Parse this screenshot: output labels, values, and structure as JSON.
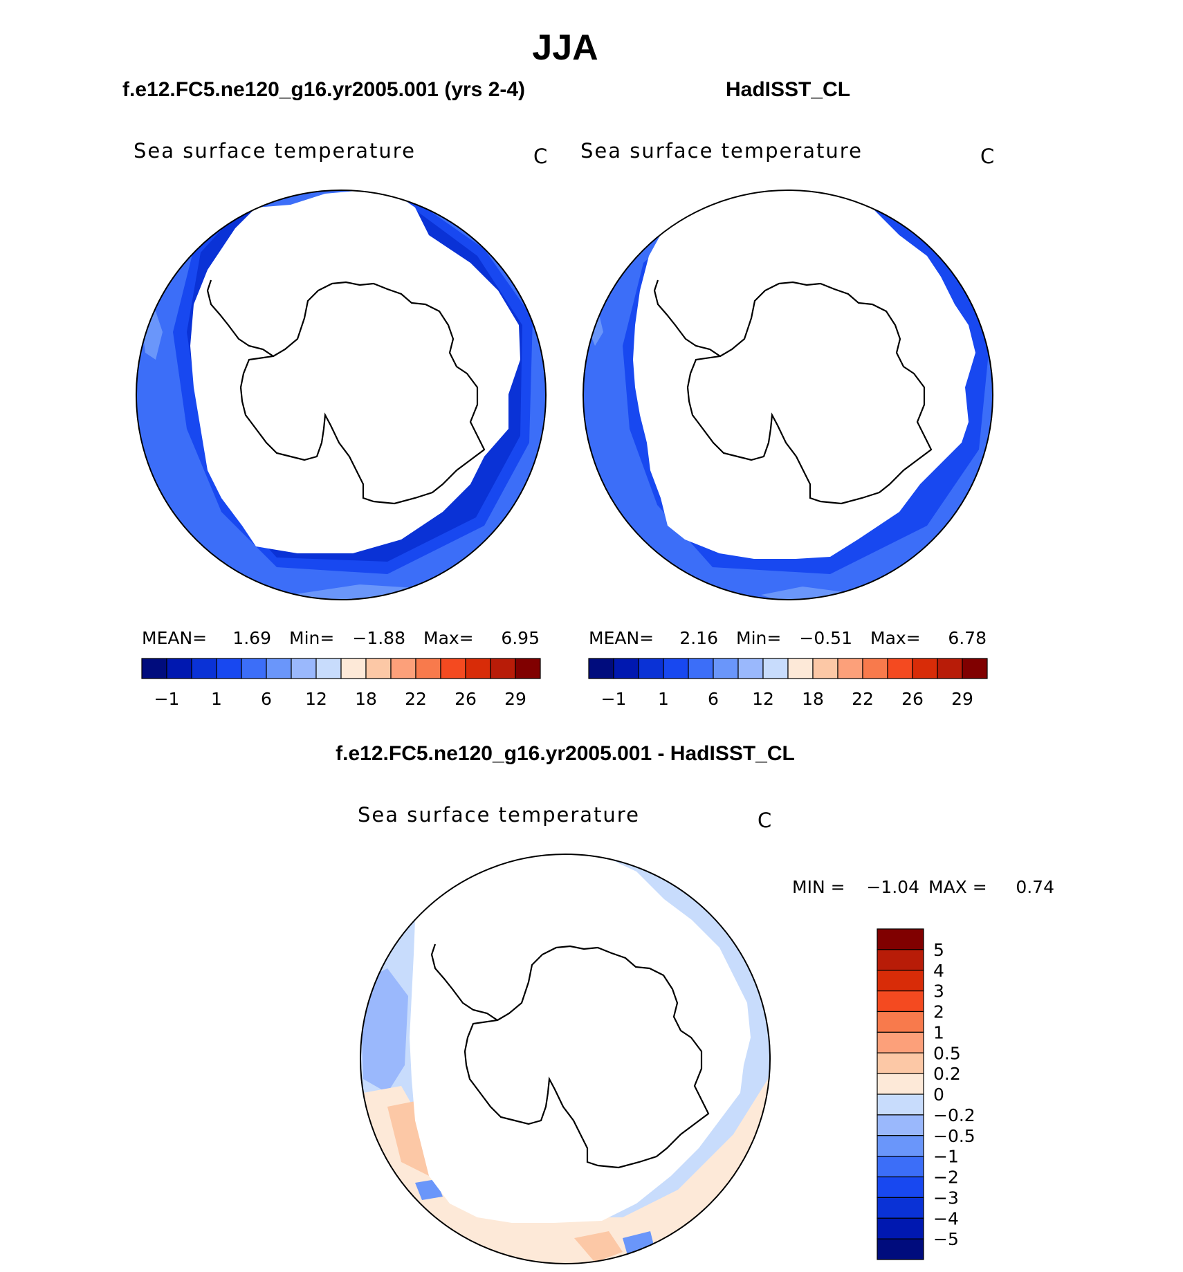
{
  "page_title": "JJA",
  "chart_data": [
    {
      "type": "heatmap",
      "projection": "south-polar-stereographic",
      "case_title": "f.e12.FC5.ne120_g16.yr2005.001 (yrs 2-4)",
      "variable": "Sea surface temperature",
      "units": "C",
      "stats": {
        "mean_label": "MEAN=",
        "mean": "1.69",
        "min_label": "Min=",
        "min": "−1.88",
        "max_label": "Max=",
        "max": "6.95"
      },
      "colorbar": {
        "orientation": "horizontal",
        "tick_labels": [
          "−1",
          "1",
          "6",
          "12",
          "18",
          "22",
          "26",
          "29"
        ],
        "colors": [
          "#000c7d",
          "#0018b0",
          "#0a32d6",
          "#1848f0",
          "#3c6ef8",
          "#6a96fa",
          "#9ab8fc",
          "#c8dcfc",
          "#fde9d8",
          "#fcc8a6",
          "#fca07a",
          "#f87a4c",
          "#f44a20",
          "#d82c08",
          "#b81c08",
          "#800000"
        ]
      }
    },
    {
      "type": "heatmap",
      "projection": "south-polar-stereographic",
      "case_title": "HadISST_CL",
      "variable": "Sea surface temperature",
      "units": "C",
      "stats": {
        "mean_label": "MEAN=",
        "mean": "2.16",
        "min_label": "Min=",
        "min": "−0.51",
        "max_label": "Max=",
        "max": "6.78"
      },
      "colorbar": {
        "orientation": "horizontal",
        "tick_labels": [
          "−1",
          "1",
          "6",
          "12",
          "18",
          "22",
          "26",
          "29"
        ],
        "colors": [
          "#000c7d",
          "#0018b0",
          "#0a32d6",
          "#1848f0",
          "#3c6ef8",
          "#6a96fa",
          "#9ab8fc",
          "#c8dcfc",
          "#fde9d8",
          "#fcc8a6",
          "#fca07a",
          "#f87a4c",
          "#f44a20",
          "#d82c08",
          "#b81c08",
          "#800000"
        ]
      }
    },
    {
      "type": "heatmap",
      "projection": "south-polar-stereographic",
      "case_title": "f.e12.FC5.ne120_g16.yr2005.001 - HadISST_CL",
      "variable": "Sea surface temperature",
      "units": "C",
      "stats": {
        "min_label": "MIN =",
        "min": "−1.04",
        "max_label": "MAX =",
        "max": "0.74"
      },
      "colorbar": {
        "orientation": "vertical",
        "tick_labels": [
          "5",
          "4",
          "3",
          "2",
          "1",
          "0.5",
          "0.2",
          "0",
          "−0.2",
          "−0.5",
          "−1",
          "−2",
          "−3",
          "−4",
          "−5"
        ],
        "colors": [
          "#800000",
          "#b81c08",
          "#d82c08",
          "#f44a20",
          "#f87a4c",
          "#fca07a",
          "#fcc8a6",
          "#fde9d8",
          "#c8dcfc",
          "#9ab8fc",
          "#6a96fa",
          "#3c6ef8",
          "#1848f0",
          "#0a32d6",
          "#0018b0",
          "#000c7d"
        ]
      }
    }
  ]
}
